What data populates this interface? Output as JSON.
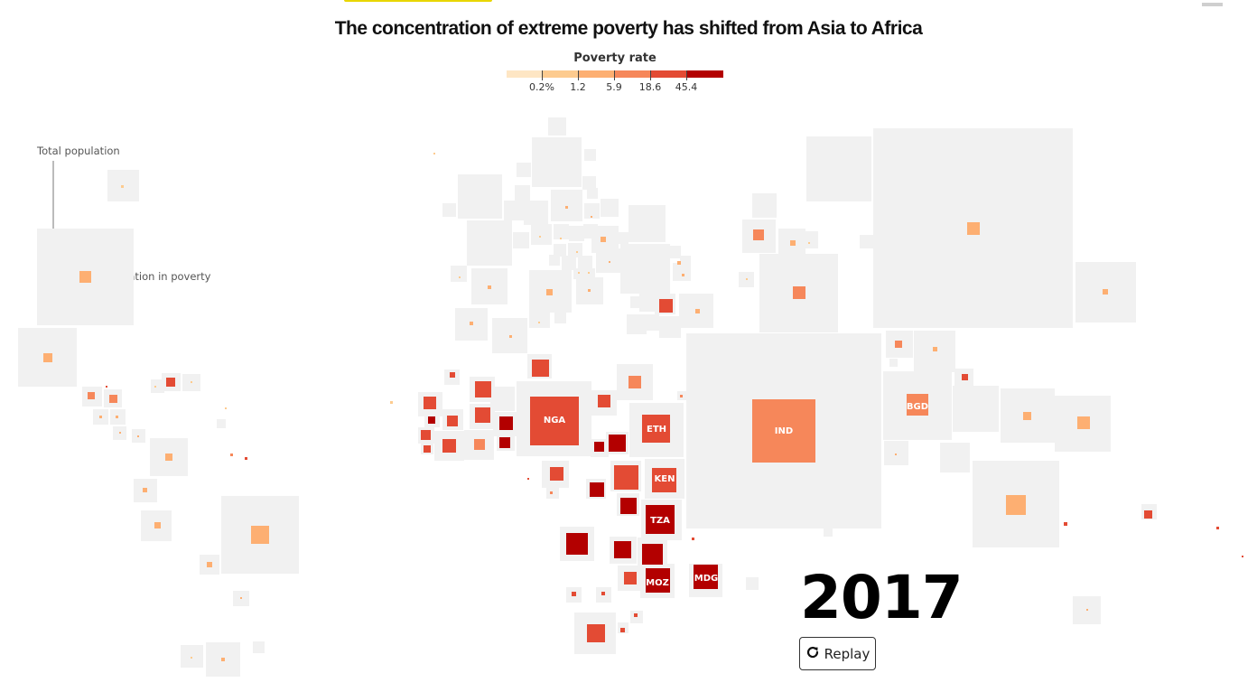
{
  "title": "The concentration of extreme poverty has shifted from Asia to Africa",
  "legend": {
    "title": "Poverty rate",
    "thresholds": [
      "0.2%",
      "1.2",
      "5.9",
      "18.6",
      "45.4"
    ],
    "colors": [
      "#fee6c4",
      "#fdcb8f",
      "#fdaf72",
      "#f6875a",
      "#e34b34",
      "#b30000"
    ]
  },
  "annotations": {
    "total_population": "Total population",
    "population_in_poverty": "Population in poverty"
  },
  "year": "2017",
  "replay_label": "Replay",
  "icons": {
    "replay": "replay-icon"
  },
  "country_labels": [
    "NGA",
    "ETH",
    "KEN",
    "TZA",
    "MOZ",
    "MDG",
    "IND",
    "BGD"
  ],
  "colors": {
    "tile_background": "#f1f1f1"
  }
}
